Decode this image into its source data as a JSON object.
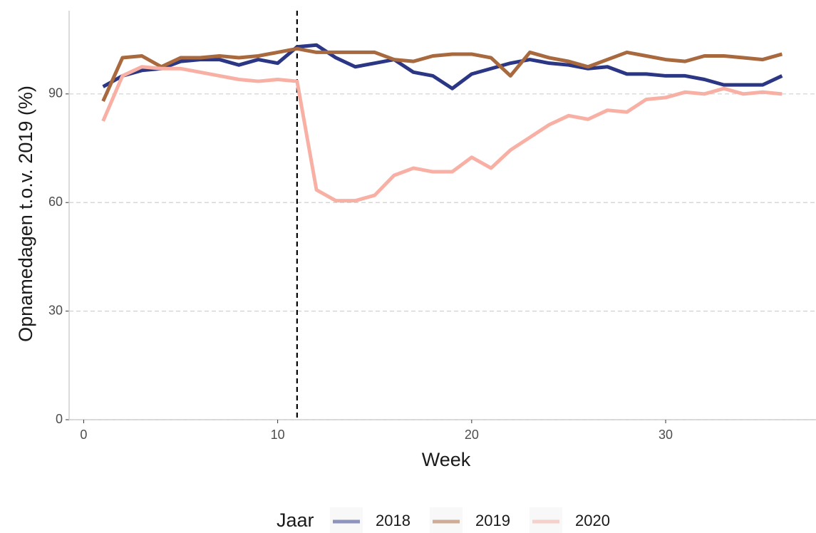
{
  "chart_data": {
    "type": "line",
    "x_label": "Week",
    "y_label": "Opnamedagen t.o.v. 2019 (%)",
    "legend_title": "Jaar",
    "legend_position": "bottom",
    "x": [
      1,
      2,
      3,
      4,
      5,
      6,
      7,
      8,
      9,
      10,
      11,
      12,
      13,
      14,
      15,
      16,
      17,
      18,
      19,
      20,
      21,
      22,
      23,
      24,
      25,
      26,
      27,
      28,
      29,
      30,
      31,
      32,
      33,
      34,
      35,
      36
    ],
    "series": [
      {
        "name": "2018",
        "color": "#2b3784",
        "values": [
          92,
          95,
          96.5,
          97,
          99,
          99.5,
          99.5,
          98,
          99.5,
          98.5,
          103,
          103.5,
          100,
          97.5,
          98.5,
          99.5,
          96,
          95,
          91.5,
          95.5,
          97,
          98.5,
          99.5,
          98.5,
          98,
          97,
          97.5,
          95.5,
          95.5,
          95,
          95,
          94,
          92.5,
          92.5,
          92.5,
          95
        ]
      },
      {
        "name": "2019",
        "color": "#a8693e",
        "values": [
          88,
          100,
          100.5,
          97.5,
          100,
          100,
          100.5,
          100,
          100.5,
          101.5,
          102.5,
          101.5,
          101.5,
          101.5,
          101.5,
          99.5,
          99,
          100.5,
          101,
          101,
          100,
          95,
          101.5,
          100,
          99,
          97.5,
          99.5,
          101.5,
          100.5,
          99.5,
          99,
          100.5,
          100.5,
          100,
          99.5,
          101
        ]
      },
      {
        "name": "2020",
        "color": "#f9b0a4",
        "values": [
          82.5,
          95,
          97.5,
          97,
          97,
          96,
          95,
          94,
          93.5,
          94,
          93.5,
          63.5,
          60.5,
          60.5,
          62,
          67.5,
          69.5,
          68.5,
          68.5,
          72.5,
          69.5,
          74.5,
          78,
          81.5,
          84,
          83,
          85.5,
          85,
          88.5,
          89,
          90.5,
          90,
          91.5,
          90,
          90.5,
          90
        ]
      }
    ],
    "vline": 11,
    "xlim": [
      -0.75,
      37.75
    ],
    "xticks": [
      0,
      10,
      20,
      30
    ],
    "ylim": [
      0,
      113
    ],
    "yticks": [
      0,
      30,
      60,
      90
    ],
    "grid": true
  }
}
